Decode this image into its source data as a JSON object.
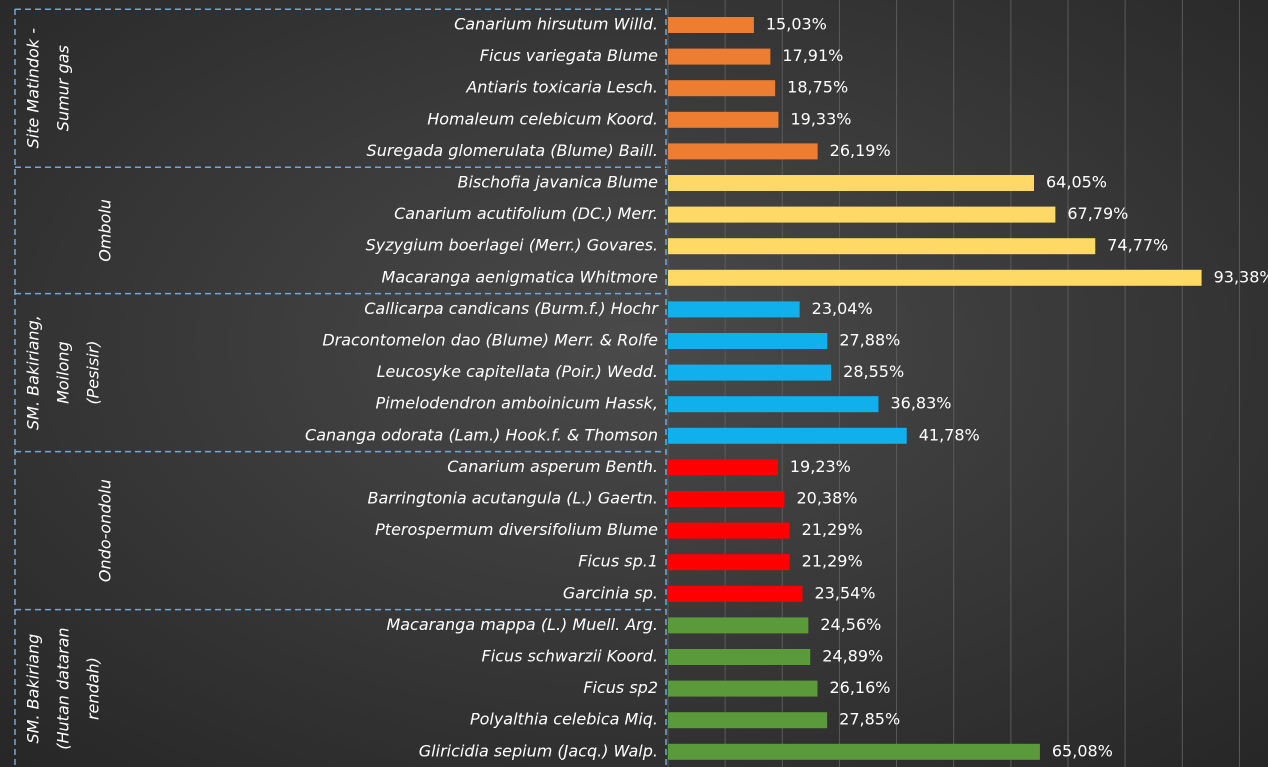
{
  "chart_data": {
    "type": "bar",
    "orientation": "horizontal",
    "xlim": [
      0,
      105
    ],
    "xticks": [
      0,
      10,
      20,
      30,
      40,
      50,
      60,
      70,
      80,
      90,
      100
    ],
    "grid": true,
    "groups": [
      {
        "label": [
          "Site Matindok -",
          "Sumur gas"
        ],
        "color": "#ed7d31",
        "categories": [
          "Canarium hirsutum Willd.",
          "Ficus variegata Blume",
          "Antiaris toxicaria Lesch.",
          "Homaleum celebicum Koord.",
          "Suregada glomerulata (Blume) Baill."
        ],
        "values": [
          15.03,
          17.91,
          18.75,
          19.33,
          26.19
        ],
        "value_labels": [
          "15,03%",
          "17,91%",
          "18,75%",
          "19,33%",
          "26,19%"
        ]
      },
      {
        "label": [
          "Ombolu"
        ],
        "color": "#ffd966",
        "categories": [
          "Bischofia javanica Blume",
          "Canarium acutifolium (DC.) Merr.",
          "Syzygium boerlagei  (Merr.) Govares.",
          "Macaranga aenigmatica Whitmore"
        ],
        "values": [
          64.05,
          67.79,
          74.77,
          93.38
        ],
        "value_labels": [
          "64,05%",
          "67,79%",
          "74,77%",
          "93,38%"
        ]
      },
      {
        "label": [
          "SM. Bakiriang,",
          "Moilong",
          "(Pesisir)"
        ],
        "color": "#0fb0ec",
        "categories": [
          "Callicarpa candicans (Burm.f.) Hochr",
          "Dracontomelon dao (Blume) Merr. & Rolfe",
          "Leucosyke capitellata (Poir.) Wedd.",
          "Pimelodendron amboinicum Hassk,",
          "Cananga odorata (Lam.) Hook.f. & Thomson"
        ],
        "values": [
          23.04,
          27.88,
          28.55,
          36.83,
          41.78
        ],
        "value_labels": [
          "23,04%",
          "27,88%",
          "28,55%",
          "36,83%",
          "41,78%"
        ]
      },
      {
        "label": [
          "Ondo-ondolu"
        ],
        "color": "#ff0000",
        "categories": [
          "Canarium asperum Benth.",
          "Barringtonia acutangula (L.) Gaertn.",
          "Pterospermum diversifolium Blume",
          "Ficus sp.1",
          "Garcinia sp."
        ],
        "values": [
          19.23,
          20.38,
          21.29,
          21.29,
          23.54
        ],
        "value_labels": [
          "19,23%",
          "20,38%",
          "21,29%",
          "21,29%",
          "23,54%"
        ]
      },
      {
        "label": [
          "SM. Bakiriang",
          "(Hutan dataran",
          "rendah)"
        ],
        "color": "#5b9a3b",
        "categories": [
          "Macaranga mappa (L.) Muell. Arg.",
          "Ficus schwarzii Koord.",
          "Ficus sp2",
          "Polyalthia celebica Miq.",
          "Gliricidia sepium (Jacq.) Walp."
        ],
        "values": [
          24.56,
          24.89,
          26.16,
          27.85,
          65.08
        ],
        "value_labels": [
          "24,56%",
          "24,89%",
          "26,16%",
          "27,85%",
          "65,08%"
        ]
      }
    ]
  }
}
